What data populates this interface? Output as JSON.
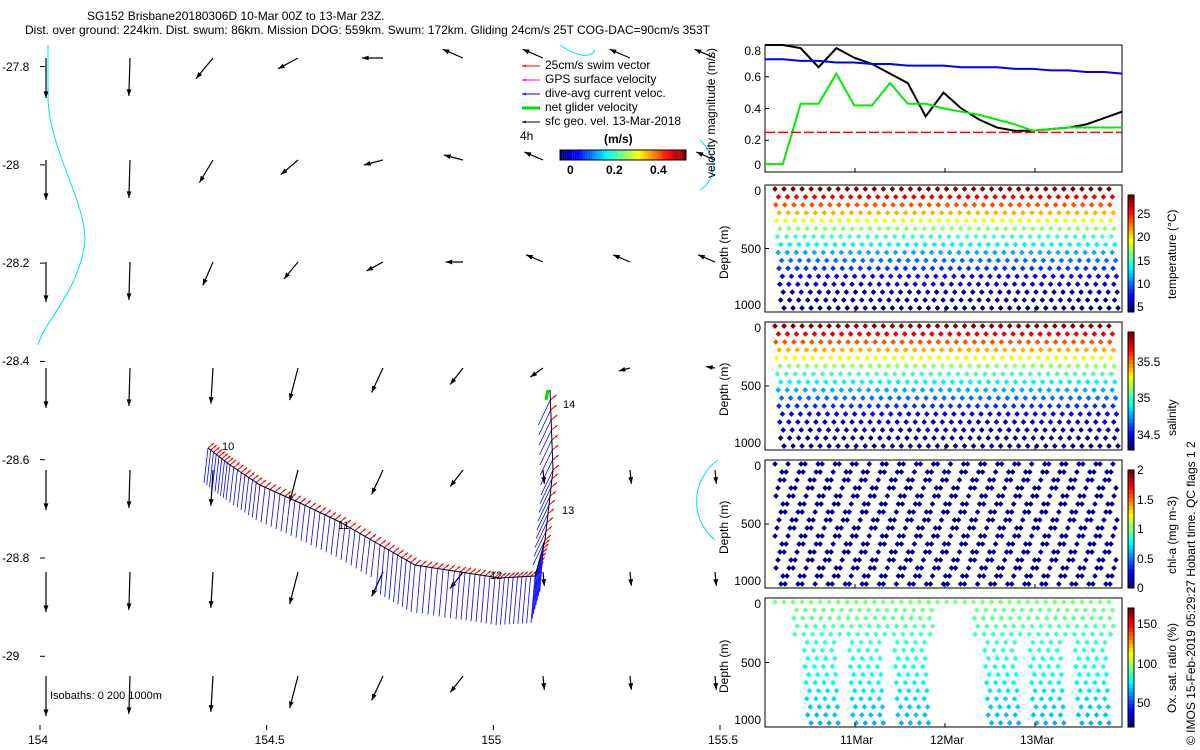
{
  "title": {
    "line1": "SG152 Brisbane20180306D 10-Mar 00Z to 13-Mar 23Z.",
    "line2": "Dist. over ground: 224km. Dist. swum: 86km. Mission DOG: 559km. Swum: 172km. Gliding 24cm/s 25T COG-DAC=90cm/s 353T"
  },
  "chart_data": [
    {
      "type": "map-vectors",
      "xlabel_ticks": [
        "154",
        "154.5",
        "155",
        "155.5"
      ],
      "x_values": [
        154,
        154.5,
        155,
        155.5
      ],
      "ylabel_ticks": [
        "-27.8",
        "-28",
        "-28.2",
        "-28.4",
        "-28.6",
        "-28.8",
        "-29"
      ],
      "y_values": [
        -27.8,
        -28,
        -28.2,
        -28.4,
        -28.6,
        -28.8,
        -29
      ],
      "xlim": [
        154,
        155.5
      ],
      "ylim": [
        -29.15,
        -27.75
      ],
      "legend": [
        {
          "label": "25cm/s swim vector",
          "color": "#ff0000"
        },
        {
          "label": "GPS surface velocity",
          "color": "#ff00ff"
        },
        {
          "label": "dive-avg current veloc.",
          "color": "#0000ff"
        },
        {
          "label": "net glider velocity",
          "color": "#00dd00"
        },
        {
          "label": "sfc geo. vel. 13-Mar-2018",
          "color": "#000000"
        }
      ],
      "time_step_label": "4h",
      "colorbar": {
        "title": "(m/s)",
        "ticks": [
          "0",
          "0.2",
          "0.4"
        ],
        "range": [
          0,
          0.5
        ]
      },
      "track_labels": [
        "10",
        "11",
        "12",
        "13",
        "14"
      ],
      "isobaths_label": "Isobaths: 0   200  1000m"
    },
    {
      "type": "line",
      "ylabel": "velocity magnitude (m/s)",
      "yticks": [
        "0",
        "0.2",
        "0.4",
        "0.6",
        "0.8"
      ],
      "ylim": [
        0,
        0.8
      ],
      "x": [
        0,
        0.05,
        0.1,
        0.15,
        0.2,
        0.25,
        0.3,
        0.35,
        0.4,
        0.45,
        0.5,
        0.55,
        0.6,
        0.65,
        0.7,
        0.75,
        0.8,
        0.85,
        0.9,
        0.95,
        1.0
      ],
      "series": [
        {
          "name": "black",
          "color": "#000000",
          "values": [
            0.8,
            0.8,
            0.78,
            0.66,
            0.78,
            0.72,
            0.68,
            0.62,
            0.56,
            0.35,
            0.5,
            0.4,
            0.33,
            0.28,
            0.26,
            0.26,
            0.27,
            0.28,
            0.3,
            0.34,
            0.38
          ]
        },
        {
          "name": "blue",
          "color": "#0000ff",
          "values": [
            0.71,
            0.71,
            0.7,
            0.7,
            0.69,
            0.69,
            0.68,
            0.68,
            0.67,
            0.67,
            0.67,
            0.66,
            0.66,
            0.66,
            0.65,
            0.65,
            0.64,
            0.64,
            0.63,
            0.63,
            0.62
          ]
        },
        {
          "name": "green",
          "color": "#00ee00",
          "values": [
            0.05,
            0.05,
            0.43,
            0.43,
            0.62,
            0.42,
            0.42,
            0.56,
            0.43,
            0.43,
            0.4,
            0.38,
            0.36,
            0.33,
            0.3,
            0.26,
            0.27,
            0.28,
            0.28,
            0.28,
            0.28
          ]
        },
        {
          "name": "red",
          "color": "#ff0000",
          "values": [
            0.25,
            0.25,
            0.25,
            0.25,
            0.25,
            0.25,
            0.25,
            0.25,
            0.25,
            0.25,
            0.25,
            0.25,
            0.25,
            0.25,
            0.25,
            0.25,
            0.25,
            0.25,
            0.25,
            0.25,
            0.25
          ]
        }
      ]
    },
    {
      "type": "scatter",
      "ylabel": "Depth (m)",
      "yticks": [
        "0",
        "500",
        "1000"
      ],
      "cbar_label": "temperature (°C)",
      "cbar_ticks": [
        "5",
        "10",
        "15",
        "20",
        "25"
      ],
      "crange": [
        4,
        29
      ],
      "surface": 28,
      "bottom": 4
    },
    {
      "type": "scatter",
      "ylabel": "Depth (m)",
      "yticks": [
        "0",
        "500",
        "1000"
      ],
      "cbar_label": "salinity",
      "cbar_ticks": [
        "34.5",
        "35",
        "35.5"
      ],
      "crange": [
        34.3,
        35.9
      ],
      "surface": 35.7,
      "bottom": 34.4
    },
    {
      "type": "scatter",
      "ylabel": "Depth (m)",
      "yticks": [
        "0",
        "500",
        "1000"
      ],
      "cbar_label": "chl-a (mg m-3)",
      "cbar_ticks": [
        "0",
        "0.5",
        "1",
        "1.5",
        "2"
      ],
      "crange": [
        0,
        2
      ],
      "surface": 0.05,
      "bottom": 0.02
    },
    {
      "type": "scatter",
      "ylabel": "Depth (m)",
      "yticks": [
        "0",
        "500",
        "1000"
      ],
      "cbar_label": "Ox. sat. ratio (%)",
      "cbar_ticks": [
        "50",
        "100",
        "150"
      ],
      "crange": [
        20,
        170
      ],
      "surface": 80,
      "bottom": 50
    }
  ],
  "time_axis": {
    "ticks": [
      "11Mar",
      "12Mar",
      "13Mar"
    ]
  },
  "footer": "© IMOS 15-Feb-2019 05:29:27 Hobart time. QC flags 1  2"
}
